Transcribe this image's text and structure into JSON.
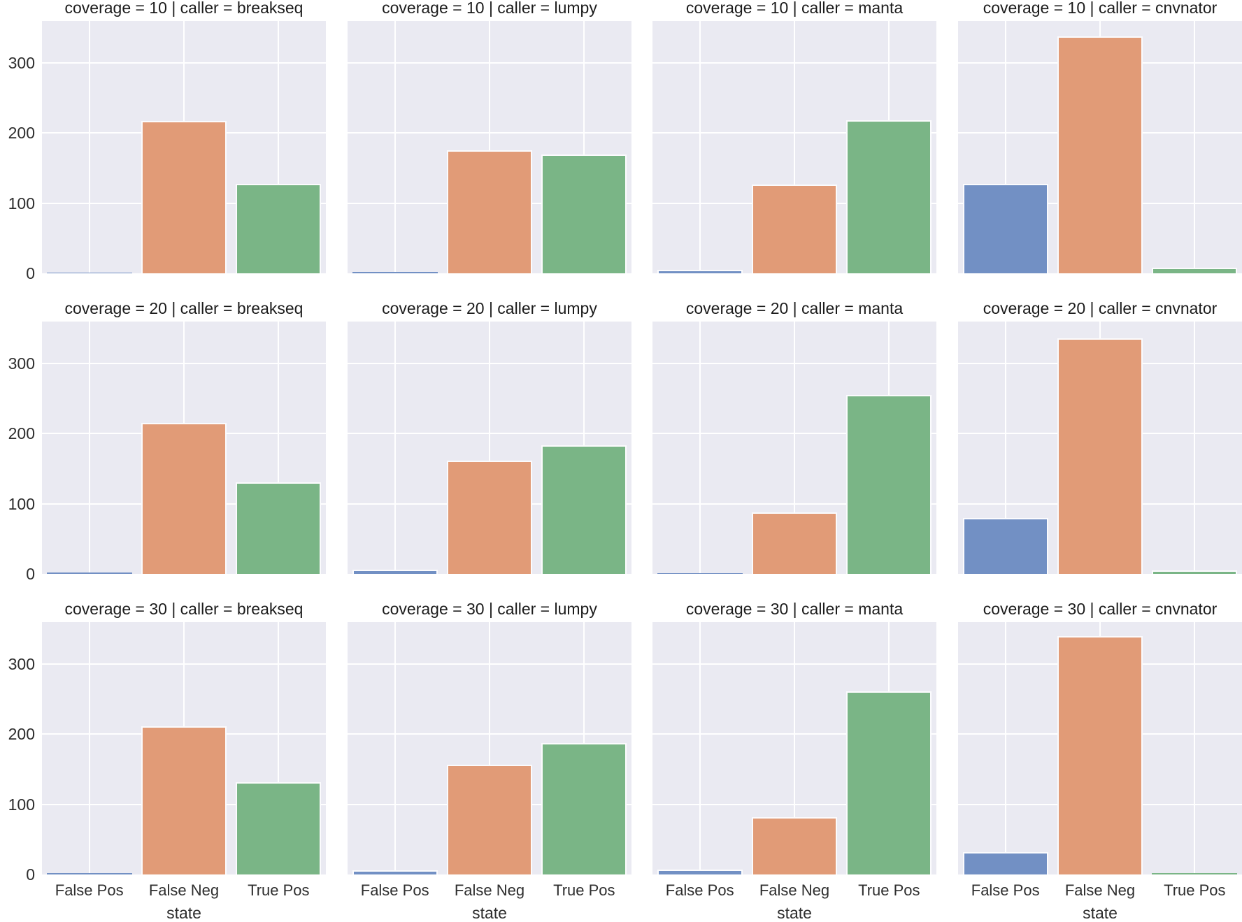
{
  "figure": {
    "kind": "seaborn-catplot-facet-grid",
    "background_color": "#ffffff",
    "axes_background_color": "#eaeaf2",
    "grid_color": "#ffffff",
    "text_color": "#2e2e2e"
  },
  "chart_data": {
    "type": "bar",
    "categories": [
      "False Pos",
      "False Neg",
      "True Pos"
    ],
    "category_colors": [
      "#7290c4",
      "#e19b77",
      "#7ab586"
    ],
    "xlabel": "state",
    "ylabel": "",
    "ylim": [
      0,
      360
    ],
    "yticks": [
      0,
      100,
      200,
      300
    ],
    "grid": true,
    "legend_position": "none",
    "facet_rows_variable": "coverage",
    "facet_cols_variable": "caller",
    "facet_row_values": [
      10,
      20,
      30
    ],
    "facet_col_values": [
      "breakseq",
      "lumpy",
      "manta",
      "cnvnator"
    ],
    "facets": [
      {
        "title": "coverage = 10 | caller = breakseq",
        "coverage": 10,
        "caller": "breakseq",
        "values": [
          1,
          217,
          128
        ]
      },
      {
        "title": "coverage = 10 | caller = lumpy",
        "coverage": 10,
        "caller": "lumpy",
        "values": [
          2,
          176,
          170
        ]
      },
      {
        "title": "coverage = 10 | caller = manta",
        "coverage": 10,
        "caller": "manta",
        "values": [
          5,
          127,
          218
        ]
      },
      {
        "title": "coverage = 10 | caller = cnvnator",
        "coverage": 10,
        "caller": "cnvnator",
        "values": [
          128,
          338,
          8
        ]
      },
      {
        "title": "coverage = 20 | caller = breakseq",
        "coverage": 20,
        "caller": "breakseq",
        "values": [
          2,
          215,
          131
        ]
      },
      {
        "title": "coverage = 20 | caller = lumpy",
        "coverage": 20,
        "caller": "lumpy",
        "values": [
          6,
          162,
          184
        ]
      },
      {
        "title": "coverage = 20 | caller = manta",
        "coverage": 20,
        "caller": "manta",
        "values": [
          1,
          88,
          255
        ]
      },
      {
        "title": "coverage = 20 | caller = cnvnator",
        "coverage": 20,
        "caller": "cnvnator",
        "values": [
          80,
          336,
          5
        ]
      },
      {
        "title": "coverage = 30 | caller = breakseq",
        "coverage": 30,
        "caller": "breakseq",
        "values": [
          2,
          211,
          132
        ]
      },
      {
        "title": "coverage = 30 | caller = lumpy",
        "coverage": 30,
        "caller": "lumpy",
        "values": [
          6,
          157,
          187
        ]
      },
      {
        "title": "coverage = 30 | caller = manta",
        "coverage": 30,
        "caller": "manta",
        "values": [
          7,
          82,
          261
        ]
      },
      {
        "title": "coverage = 30 | caller = cnvnator",
        "coverage": 30,
        "caller": "cnvnator",
        "values": [
          32,
          340,
          2
        ]
      }
    ]
  }
}
